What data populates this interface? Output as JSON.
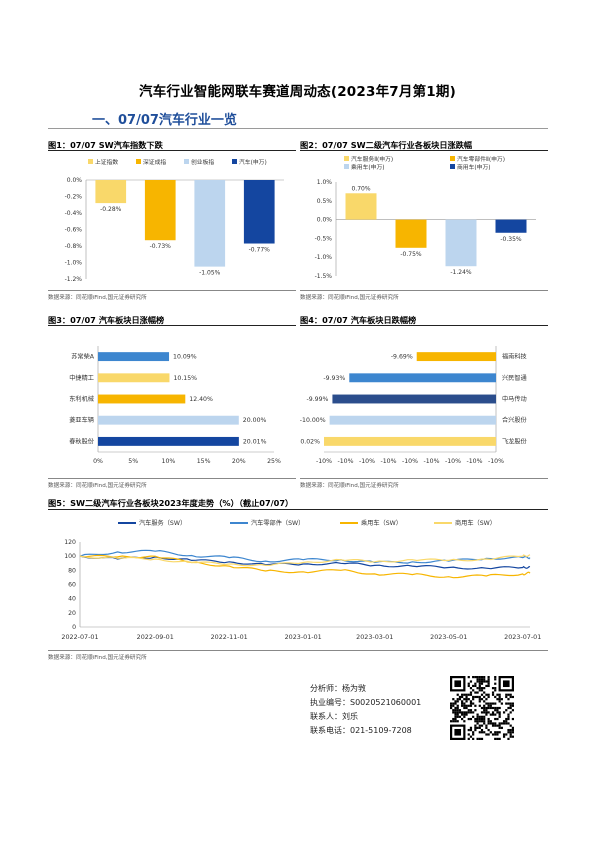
{
  "document": {
    "title": "汽车行业智能网联车赛道周动态(2023年7月第1期)",
    "section_title": "一、07/07汽车行业一览",
    "source_note": "数据来源：同花顺iFind,国元证券研究所"
  },
  "figures": {
    "fig1": {
      "title": "图1：07/07 SW汽车指数下跌"
    },
    "fig2": {
      "title": "图2：07/07 SW二级汽车行业各板块日涨跌幅"
    },
    "fig3": {
      "title": "图3：07/07 汽车板块日涨幅榜"
    },
    "fig4": {
      "title": "图4：07/07 汽车板块日跌幅榜"
    },
    "fig5": {
      "title": "图5：SW二级汽车行业各板块2023年度走势（%）（截止07/07）"
    }
  },
  "analyst": {
    "name_line": "分析师：杨为敩",
    "license_line": "执业编号：S0020521060001",
    "contact_line": "联系人：刘乐",
    "phone_line": "联系电话：021-5109-7208"
  },
  "chart_data": [
    {
      "id": "fig1",
      "type": "bar",
      "categories": [
        "上证指数",
        "深证成指",
        "创业板指",
        "汽车(申万)"
      ],
      "values": [
        -0.28,
        -0.73,
        -1.05,
        -0.77
      ],
      "value_labels": [
        "-0.28%",
        "-0.73%",
        "-1.05%",
        "-0.77%"
      ],
      "colors": [
        "#f9d86a",
        "#f7b500",
        "#bcd5ee",
        "#1446a0"
      ],
      "ylim": [
        -1.2,
        0.0
      ],
      "yticks": [
        "0.0%",
        "-0.2%",
        "-0.4%",
        "-0.6%",
        "-0.8%",
        "-1.0%",
        "-1.2%"
      ],
      "ytick_values": [
        0.0,
        -0.2,
        -0.4,
        -0.6,
        -0.8,
        -1.0,
        -1.2
      ],
      "legend_position": "top"
    },
    {
      "id": "fig2",
      "type": "bar",
      "categories": [
        "汽车服务Ⅱ(申万)",
        "汽车零部件Ⅱ(申万)",
        "乘用车(申万)",
        "商用车(申万)"
      ],
      "values": [
        0.7,
        -0.75,
        -1.24,
        -0.35
      ],
      "value_labels": [
        "0.70%",
        "-0.75%",
        "-1.24%",
        "-0.35%"
      ],
      "colors": [
        "#f9d86a",
        "#f7b500",
        "#bcd5ee",
        "#1446a0"
      ],
      "ylim": [
        -1.5,
        1.0
      ],
      "yticks": [
        "1.0%",
        "0.5%",
        "0.0%",
        "-0.5%",
        "-1.0%",
        "-1.5%"
      ],
      "ytick_values": [
        1.0,
        0.5,
        0.0,
        -0.5,
        -1.0,
        -1.5
      ],
      "legend_position": "top"
    },
    {
      "id": "fig3",
      "type": "bar",
      "orientation": "horizontal",
      "categories": [
        "苏常柴A",
        "中捷精工",
        "东利机械",
        "菱亚车辆",
        "春秋股份"
      ],
      "values": [
        10.09,
        10.15,
        12.4,
        20.0,
        20.01
      ],
      "value_labels": [
        "10.09%",
        "10.15%",
        "12.40%",
        "20.00%",
        "20.01%"
      ],
      "colors": [
        "#3d86cf",
        "#f9d86a",
        "#f7b500",
        "#bcd5ee",
        "#1446a0"
      ],
      "xlim": [
        0,
        25
      ],
      "xticks": [
        "0%",
        "5%",
        "10%",
        "15%",
        "20%",
        "25%"
      ],
      "xtick_values": [
        0,
        5,
        10,
        15,
        20,
        25
      ]
    },
    {
      "id": "fig4",
      "type": "bar",
      "orientation": "horizontal",
      "categories": [
        "福南科技",
        "兴民智通",
        "中马传动",
        "合兴股份",
        "飞龙股份"
      ],
      "values": [
        -9.69,
        -9.93,
        -9.99,
        -10.0,
        -10.02
      ],
      "value_labels": [
        "-9.69%",
        "-9.93%",
        "-9.99%",
        "-10.00%",
        "-10.02%"
      ],
      "colors": [
        "#f7b500",
        "#3d86cf",
        "#2b4d8c",
        "#bcd5ee",
        "#f9d86a"
      ],
      "xticks": [
        "-10%",
        "-10%",
        "-10%",
        "-10%",
        "-10%",
        "-10%",
        "-10%",
        "-10%",
        "-10%"
      ]
    },
    {
      "id": "fig5",
      "type": "line",
      "x_dates": [
        "2022-07-01",
        "2022-08-01",
        "2022-09-01",
        "2022-10-01",
        "2022-11-01",
        "2022-12-01",
        "2023-01-01",
        "2023-02-01",
        "2023-03-01",
        "2023-04-01",
        "2023-05-01",
        "2023-06-01",
        "2023-07-01",
        "2023-07-07"
      ],
      "xticks": [
        "2022-07-01",
        "2022-09-01",
        "2022-11-01",
        "2023-01-01",
        "2023-03-01",
        "2023-05-01",
        "2023-07-01"
      ],
      "ylim": [
        0,
        120
      ],
      "yticks": [
        "0",
        "20",
        "40",
        "60",
        "80",
        "100",
        "120"
      ],
      "ytick_values": [
        0,
        20,
        40,
        60,
        80,
        100,
        120
      ],
      "legend_position": "top",
      "series": [
        {
          "name": "汽车服务（SW）",
          "color": "#1446a0",
          "values": [
            100,
            96,
            99,
            94,
            92,
            88,
            89,
            90,
            87,
            86,
            84,
            83,
            84,
            85
          ]
        },
        {
          "name": "汽车零部件（SW）",
          "color": "#3d86cf",
          "values": [
            100,
            106,
            107,
            101,
            98,
            93,
            95,
            95,
            91,
            92,
            93,
            97,
            98,
            98
          ]
        },
        {
          "name": "乘用车（SW）",
          "color": "#f7b500",
          "values": [
            100,
            99,
            100,
            91,
            86,
            79,
            78,
            80,
            75,
            74,
            71,
            72,
            75,
            76
          ]
        },
        {
          "name": "商用车（SW）",
          "color": "#f9d86a",
          "values": [
            100,
            97,
            96,
            91,
            89,
            87,
            91,
            95,
            92,
            95,
            94,
            96,
            100,
            102
          ]
        }
      ]
    }
  ]
}
